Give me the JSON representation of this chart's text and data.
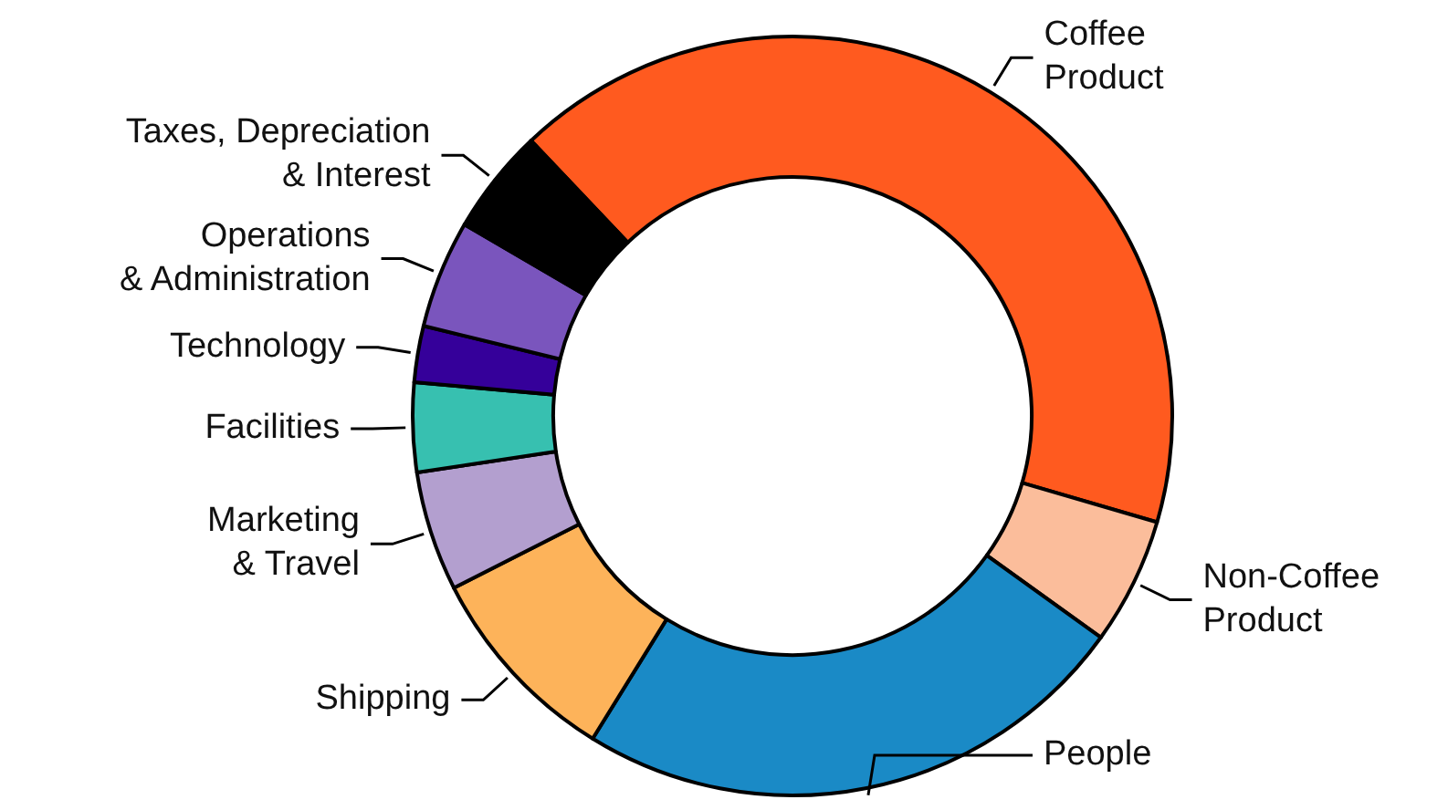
{
  "chart_data": {
    "type": "donut",
    "categories": [
      "Coffee Product",
      "Non-Coffee Product",
      "People",
      "Shipping",
      "Marketing & Travel",
      "Facilities",
      "Technology",
      "Operations & Administration",
      "Taxes, Depreciation & Interest"
    ],
    "values": [
      41.6,
      5.4,
      23.9,
      8.7,
      5.1,
      3.8,
      2.4,
      4.6,
      4.5
    ],
    "colors": [
      "#ff5a1f",
      "#fbbd9b",
      "#1a8ac6",
      "#fdb35a",
      "#b39fcf",
      "#37c0b0",
      "#35009a",
      "#7a55bd",
      "#000000"
    ]
  }
}
